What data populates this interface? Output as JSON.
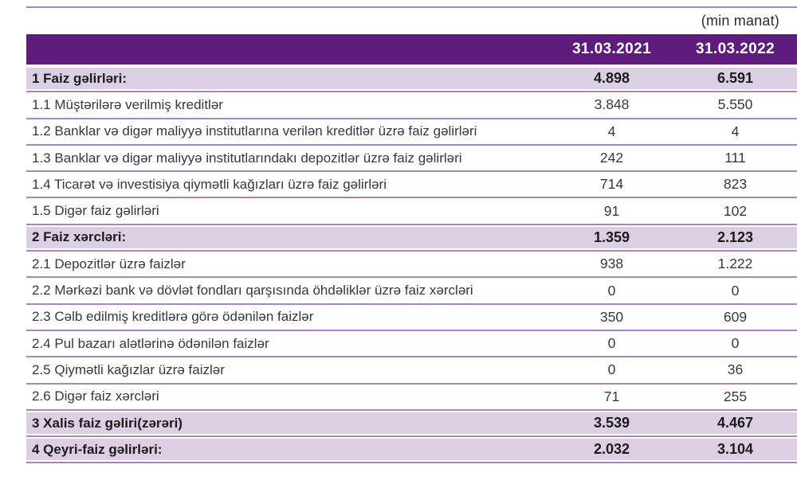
{
  "meta": {
    "unit_note": "(min manat)"
  },
  "colors": {
    "header_bg": "#601b7e",
    "section_row_bg": "#dccfe3",
    "row_line": "#aa84ba"
  },
  "header": {
    "columns": [
      "31.03.2021",
      "31.03.2022"
    ]
  },
  "table": {
    "rows": [
      {
        "label": "1 Faiz gəlirləri:",
        "v2021": "4.898",
        "v2022": "6.591"
      },
      {
        "label": "1.1 Müştərilərə verilmiş kreditlər",
        "v2021": "3.848",
        "v2022": "5.550"
      },
      {
        "label": "1.2 Banklar və digər maliyyə institutlarına verilən kreditlər üzrə faiz gəlirləri",
        "v2021": "4",
        "v2022": "4"
      },
      {
        "label": "1.3 Banklar və digər maliyyə institutlarındakı depozitlər üzrə faiz gəlirləri",
        "v2021": "242",
        "v2022": "111"
      },
      {
        "label": "1.4 Ticarət və investisiya qiymətli kağızları üzrə faiz gəlirləri",
        "v2021": "714",
        "v2022": "823"
      },
      {
        "label": "1.5 Digər faiz gəlirləri",
        "v2021": "91",
        "v2022": "102"
      },
      {
        "label": "2 Faiz xərcləri:",
        "v2021": "1.359",
        "v2022": "2.123"
      },
      {
        "label": "2.1 Depozitlər üzrə faizlər",
        "v2021": "938",
        "v2022": "1.222"
      },
      {
        "label": "2.2 Mərkəzi bank və dövlət fondları qarşısında öhdəliklər üzrə faiz xərcləri",
        "v2021": "0",
        "v2022": "0"
      },
      {
        "label": "2.3 Cəlb edilmiş kreditlərə görə ödənilən faizlər",
        "v2021": "350",
        "v2022": "609"
      },
      {
        "label": "2.4 Pul bazarı alətlərinə ödənilən faizlər",
        "v2021": "0",
        "v2022": "0"
      },
      {
        "label": "2.5 Qiymətli kağızlar üzrə faizlər",
        "v2021": "0",
        "v2022": "36"
      },
      {
        "label": "2.6 Digər faiz xərcləri",
        "v2021": "71",
        "v2022": "255"
      },
      {
        "label": "3 Xalis faiz gəliri(zərəri)",
        "v2021": "3.539",
        "v2022": "4.467"
      },
      {
        "label": "4 Qeyri-faiz gəlirləri:",
        "v2021": "2.032",
        "v2022": "3.104"
      }
    ]
  }
}
